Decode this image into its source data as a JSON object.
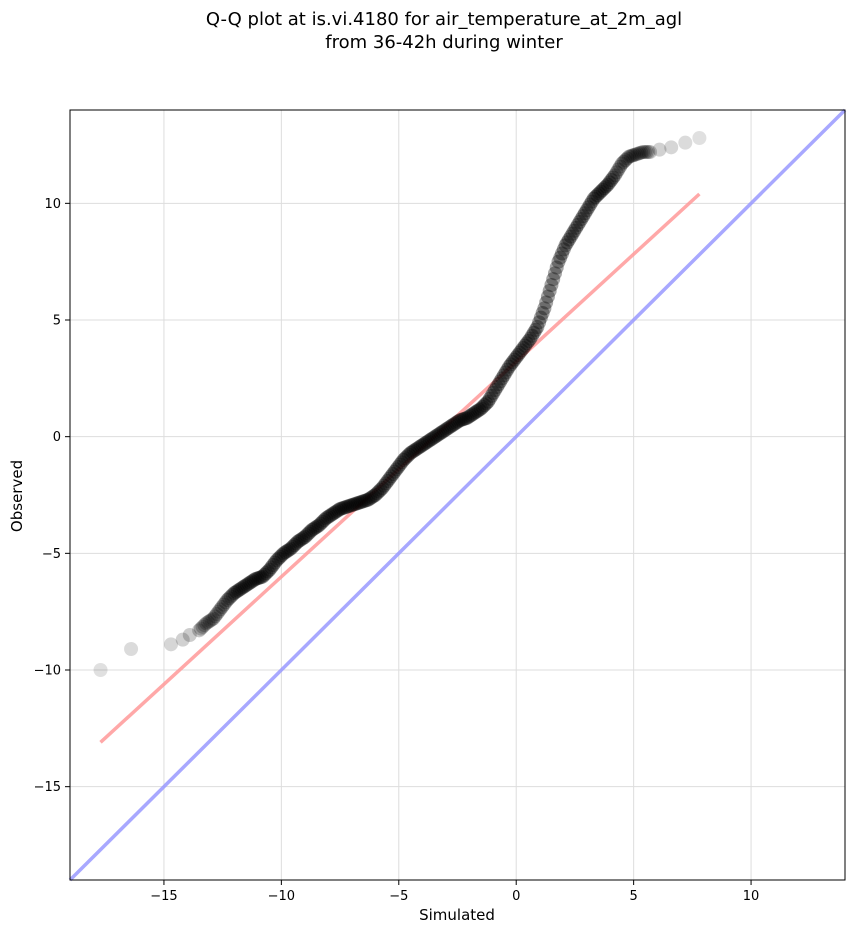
{
  "chart_data": {
    "type": "scatter",
    "title_lines": [
      "Q-Q plot at is.vi.4180 for air_temperature_at_2m_agl",
      "from 36-42h during winter"
    ],
    "xlabel": "Simulated",
    "ylabel": "Observed",
    "xlim": [
      -19.0,
      14.0
    ],
    "ylim": [
      -19.0,
      14.0
    ],
    "x_ticks": [
      -15,
      -10,
      -5,
      0,
      5,
      10
    ],
    "y_ticks": [
      -15,
      -10,
      -5,
      0,
      5,
      10
    ],
    "x_tick_labels": [
      "−15",
      "−10",
      "−5",
      "0",
      "5",
      "10"
    ],
    "y_tick_labels": [
      "−15",
      "−10",
      "−5",
      "0",
      "5",
      "10"
    ],
    "grid": true,
    "quantiles": {
      "x": [
        -17.7,
        -16.4,
        -14.7,
        -14.2,
        -13.9,
        -13.5,
        -13.2,
        -12.9,
        -12.6,
        -12.3,
        -12.0,
        -11.7,
        -11.4,
        -11.1,
        -10.8,
        -10.5,
        -10.2,
        -9.9,
        -9.6,
        -9.3,
        -9.0,
        -8.7,
        -8.4,
        -8.1,
        -7.8,
        -7.5,
        -7.2,
        -6.9,
        -6.6,
        -6.3,
        -6.0,
        -5.7,
        -5.4,
        -5.1,
        -4.8,
        -4.5,
        -4.2,
        -3.9,
        -3.6,
        -3.3,
        -3.0,
        -2.7,
        -2.4,
        -2.1,
        -1.8,
        -1.5,
        -1.2,
        -0.9,
        -0.6,
        -0.3,
        0.0,
        0.3,
        0.6,
        0.9,
        1.2,
        1.5,
        1.8,
        2.1,
        2.4,
        2.7,
        3.0,
        3.3,
        3.6,
        3.9,
        4.2,
        4.5,
        4.8,
        5.1,
        5.4,
        5.7,
        6.1,
        6.6,
        7.2,
        7.8
      ],
      "y": [
        -10.0,
        -9.1,
        -8.9,
        -8.7,
        -8.5,
        -8.3,
        -8.0,
        -7.8,
        -7.4,
        -7.0,
        -6.7,
        -6.5,
        -6.3,
        -6.1,
        -6.0,
        -5.7,
        -5.3,
        -5.0,
        -4.8,
        -4.5,
        -4.3,
        -4.0,
        -3.8,
        -3.5,
        -3.3,
        -3.1,
        -3.0,
        -2.9,
        -2.8,
        -2.7,
        -2.5,
        -2.2,
        -1.8,
        -1.4,
        -1.0,
        -0.7,
        -0.5,
        -0.3,
        -0.1,
        0.1,
        0.3,
        0.5,
        0.7,
        0.8,
        1.0,
        1.2,
        1.5,
        2.0,
        2.5,
        3.0,
        3.4,
        3.8,
        4.2,
        4.7,
        5.5,
        6.5,
        7.5,
        8.2,
        8.7,
        9.2,
        9.7,
        10.2,
        10.5,
        10.8,
        11.2,
        11.7,
        12.0,
        12.1,
        12.2,
        12.2,
        12.3,
        12.4,
        12.6,
        12.8
      ]
    },
    "fit_line": {
      "x": [
        -17.7,
        7.8
      ],
      "y": [
        -13.1,
        10.4
      ],
      "color": "#ff9999"
    },
    "identity_line": {
      "x": [
        -19.0,
        14.0
      ],
      "y": [
        -19.0,
        14.0
      ],
      "color": "#9999ff"
    },
    "point_color": "#000000"
  }
}
